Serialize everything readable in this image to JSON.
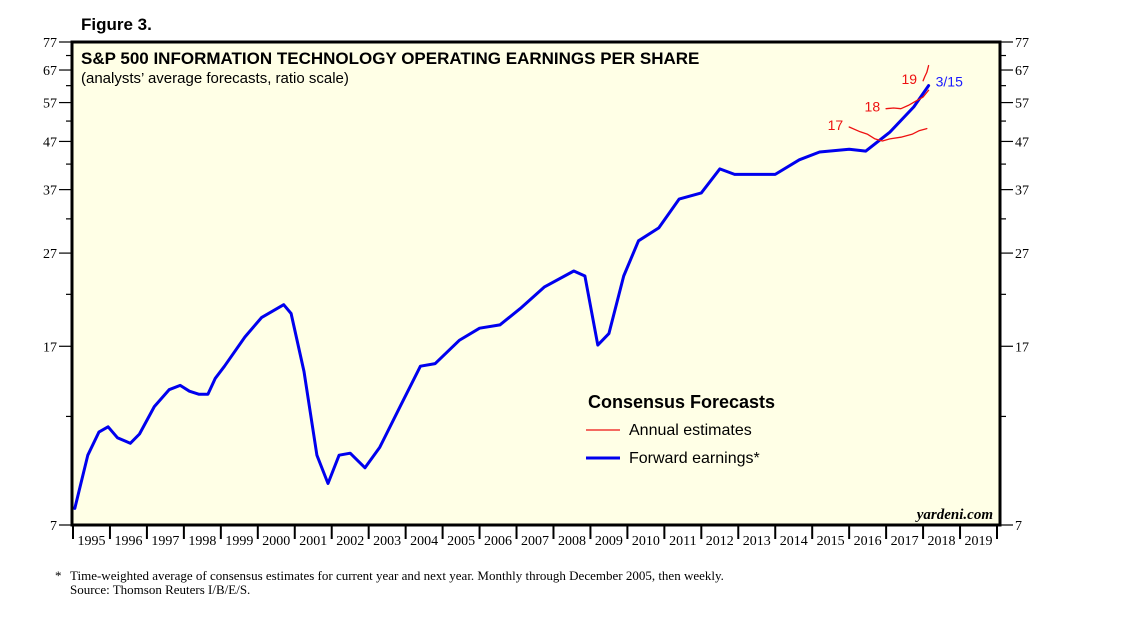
{
  "figure_label": "Figure 3.",
  "footnote": {
    "marker": "*",
    "line1": "Time-weighted average of consensus estimates for current year and next year. Monthly through December 2005, then weekly.",
    "line2": "Source: Thomson Reuters I/B/E/S."
  },
  "credit": "yardeni.com",
  "colors": {
    "background": "#ffffe6",
    "forward": "#0000ee",
    "annual": "#ee1111",
    "frame": "#000000"
  },
  "chart_data": {
    "type": "line",
    "title": "S&P 500 INFORMATION TECHNOLOGY OPERATING EARNINGS PER SHARE",
    "subtitle": "(analysts’ average forecasts, ratio scale)",
    "xlabel": "",
    "ylabel": "",
    "yscale": "log",
    "ylim": [
      7,
      77
    ],
    "xlim": [
      1995,
      2020
    ],
    "grid": false,
    "y_ticks": [
      7,
      17,
      27,
      37,
      47,
      57,
      67,
      77
    ],
    "y_minor_ticks": [
      12,
      22,
      32,
      42,
      52,
      62,
      72
    ],
    "x_tick_labels": [
      "1995",
      "1996",
      "1997",
      "1998",
      "1999",
      "2000",
      "2001",
      "2002",
      "2003",
      "2004",
      "2005",
      "2006",
      "2007",
      "2008",
      "2009",
      "2010",
      "2011",
      "2012",
      "2013",
      "2014",
      "2015",
      "2016",
      "2017",
      "2018",
      "2019"
    ],
    "legend": {
      "title": "Consensus Forecasts",
      "placement": "center-right",
      "entries": [
        {
          "label": "Annual estimates",
          "series": "annual"
        },
        {
          "label": "Forward earnings*",
          "series": "forward"
        }
      ]
    },
    "series": [
      {
        "name": "Forward earnings*",
        "key": "forward",
        "end_label": "3/15",
        "x": [
          1995.05,
          1995.4,
          1995.7,
          1995.95,
          1996.2,
          1996.55,
          1996.8,
          1997.2,
          1997.6,
          1997.9,
          1998.15,
          1998.4,
          1998.65,
          1998.85,
          1999.1,
          1999.65,
          2000.1,
          2000.7,
          2000.9,
          2001.25,
          2001.6,
          2001.9,
          2002.2,
          2002.5,
          2002.9,
          2003.3,
          2003.85,
          2004.4,
          2004.8,
          2005.45,
          2006.0,
          2006.55,
          2007.1,
          2007.75,
          2008.55,
          2008.85,
          2009.2,
          2009.5,
          2009.9,
          2010.3,
          2010.85,
          2011.4,
          2012.0,
          2012.5,
          2012.9,
          2013.45,
          2014.0,
          2014.65,
          2015.2,
          2016.0,
          2016.45,
          2017.1,
          2017.75,
          2018.15
        ],
        "values": [
          7.6,
          9.9,
          11.1,
          11.4,
          10.8,
          10.5,
          11.0,
          12.6,
          13.7,
          14.0,
          13.6,
          13.4,
          13.4,
          14.5,
          15.4,
          17.8,
          19.6,
          20.9,
          20.0,
          15.0,
          9.9,
          8.6,
          9.9,
          10.0,
          9.3,
          10.3,
          12.6,
          15.4,
          15.6,
          17.5,
          18.6,
          18.9,
          20.5,
          22.8,
          24.7,
          24.1,
          17.1,
          18.1,
          24.1,
          28.7,
          30.6,
          35.3,
          36.4,
          41.0,
          39.9,
          39.9,
          39.9,
          42.9,
          44.6,
          45.2,
          44.8,
          49.2,
          55.8,
          62.0
        ]
      },
      {
        "name": "2017 annual estimate",
        "key": "annual",
        "label": "17",
        "x": [
          2016.0,
          2016.3,
          2016.5,
          2016.7,
          2016.9,
          2017.1,
          2017.4,
          2017.7,
          2017.9,
          2018.1
        ],
        "values": [
          50.5,
          49.3,
          48.7,
          47.6,
          47.1,
          47.6,
          48.0,
          48.7,
          49.6,
          50.1
        ]
      },
      {
        "name": "2018 annual estimate",
        "key": "annual",
        "label": "18",
        "x": [
          2017.0,
          2017.2,
          2017.4,
          2017.6,
          2017.8,
          2018.0,
          2018.15
        ],
        "values": [
          55.3,
          55.5,
          55.3,
          56.2,
          57.4,
          58.6,
          60.6
        ]
      },
      {
        "name": "2019 annual estimate",
        "key": "annual",
        "label": "19",
        "x": [
          2018.0,
          2018.05,
          2018.1,
          2018.15
        ],
        "values": [
          63.5,
          64.9,
          66.2,
          68.5
        ]
      }
    ]
  }
}
